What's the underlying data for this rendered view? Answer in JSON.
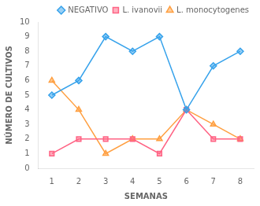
{
  "chart_data": {
    "type": "line",
    "x": [
      1,
      2,
      3,
      4,
      5,
      6,
      7,
      8
    ],
    "xlabel": "SEMANAS",
    "ylabel": "NÚMERO DE CULTIVOS",
    "series": [
      {
        "name": "NEGATIVO",
        "marker": "diamond",
        "values": [
          5,
          6,
          9,
          8,
          9,
          4,
          7,
          8
        ]
      },
      {
        "name": "L. ivanovii",
        "marker": "square",
        "values": [
          1,
          2,
          2,
          2,
          1,
          4,
          2,
          2
        ]
      },
      {
        "name": "L. monocytogenes",
        "marker": "triangle",
        "values": [
          6,
          4,
          1,
          2,
          2,
          4,
          3,
          2
        ]
      }
    ],
    "xlim": [
      0.5,
      8.5
    ],
    "xticks": [
      1,
      2,
      3,
      4,
      5,
      6,
      7,
      8
    ],
    "ylim": [
      0,
      10
    ],
    "yticks": [
      0,
      1,
      2,
      3,
      4,
      5,
      6,
      7,
      8,
      9,
      10
    ],
    "grid": false,
    "legend": "upper right"
  }
}
